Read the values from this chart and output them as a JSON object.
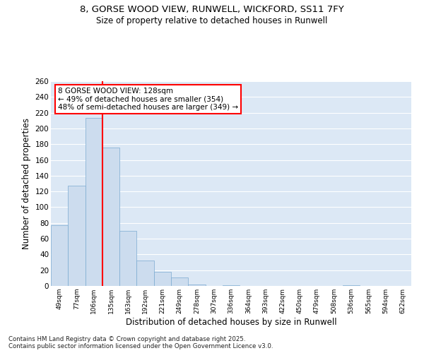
{
  "title": "8, GORSE WOOD VIEW, RUNWELL, WICKFORD, SS11 7FY",
  "subtitle": "Size of property relative to detached houses in Runwell",
  "xlabel": "Distribution of detached houses by size in Runwell",
  "ylabel": "Number of detached properties",
  "categories": [
    "49sqm",
    "77sqm",
    "106sqm",
    "135sqm",
    "163sqm",
    "192sqm",
    "221sqm",
    "249sqm",
    "278sqm",
    "307sqm",
    "336sqm",
    "364sqm",
    "393sqm",
    "422sqm",
    "450sqm",
    "479sqm",
    "508sqm",
    "536sqm",
    "565sqm",
    "594sqm",
    "622sqm"
  ],
  "values": [
    77,
    127,
    213,
    176,
    70,
    32,
    18,
    11,
    2,
    0,
    1,
    0,
    0,
    0,
    0,
    0,
    0,
    1,
    0,
    0,
    0
  ],
  "bar_color": "#ccdcee",
  "bar_edge_color": "#7aaad0",
  "vline_x": 3.0,
  "vline_color": "red",
  "annotation_line1": "8 GORSE WOOD VIEW: 128sqm",
  "annotation_line2": "← 49% of detached houses are smaller (354)",
  "annotation_line3": "48% of semi-detached houses are larger (349) →",
  "annotation_box_color": "white",
  "annotation_box_edge": "red",
  "ylim": [
    0,
    260
  ],
  "yticks": [
    0,
    20,
    40,
    60,
    80,
    100,
    120,
    140,
    160,
    180,
    200,
    220,
    240,
    260
  ],
  "bg_color": "#dce8f5",
  "grid_color": "white",
  "footer_line1": "Contains HM Land Registry data © Crown copyright and database right 2025.",
  "footer_line2": "Contains public sector information licensed under the Open Government Licence v3.0."
}
